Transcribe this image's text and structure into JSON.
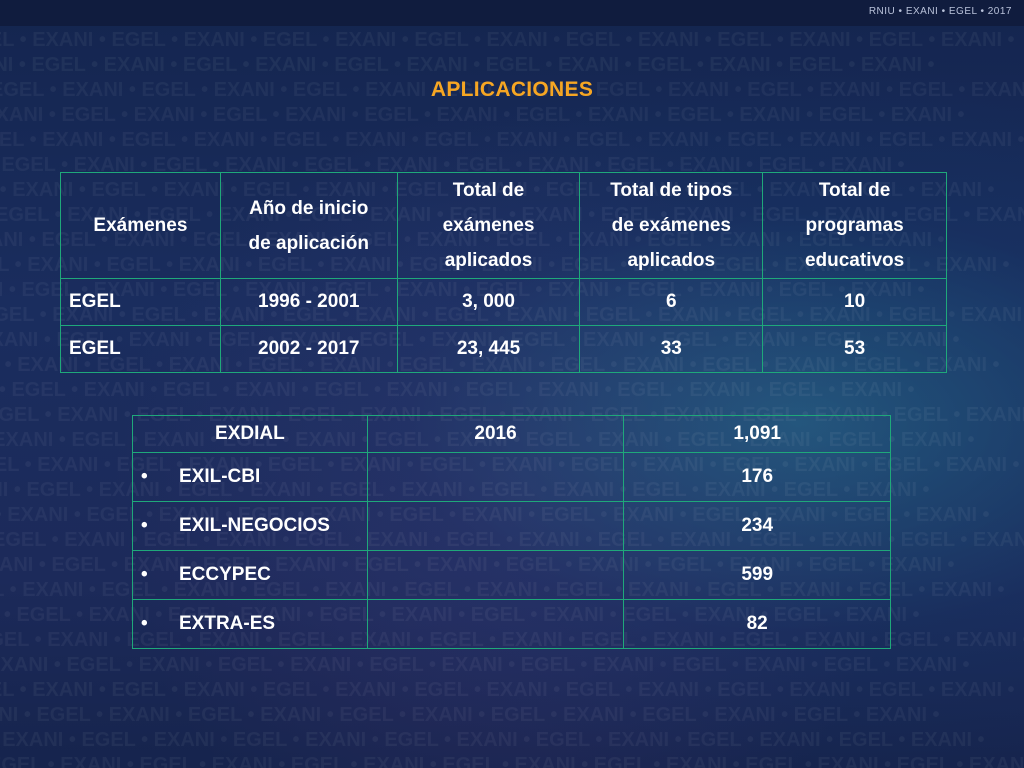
{
  "header": {
    "brand": "RNIU • EXANI • EGEL • 2017"
  },
  "watermark_text": "EGEL • EXANI • EGEL • EXANI • EGEL • EXANI • EGEL • EXANI • EGEL • EXANI • EGEL • EXANI • EGEL • EXANI •",
  "title": "APLICACIONES",
  "table_main": {
    "headers": [
      [
        "Exámenes"
      ],
      [
        "Año de inicio",
        "de aplicación"
      ],
      [
        "Total de",
        "exámenes",
        "aplicados"
      ],
      [
        "Total de tipos",
        "de exámenes",
        "aplicados"
      ],
      [
        "Total de",
        "programas",
        "educativos"
      ]
    ],
    "rows": [
      [
        "EGEL",
        "1996 - 2001",
        "3, 000",
        "6",
        "10"
      ],
      [
        "EGEL",
        "2002 - 2017",
        "23, 445",
        "33",
        "53"
      ]
    ]
  },
  "table_secondary": {
    "header": [
      "EXDIAL",
      "2016",
      "1,091"
    ],
    "bullet": "•",
    "rows": [
      [
        "EXIL-CBI",
        "",
        "176"
      ],
      [
        "EXIL-NEGOCIOS",
        "",
        "234"
      ],
      [
        "ECCYPEC",
        "",
        "599"
      ],
      [
        "EXTRA-ES",
        "",
        "82"
      ]
    ]
  },
  "colors": {
    "title": "#f6a623",
    "border": "#1fa87a",
    "text": "#ffffff"
  }
}
